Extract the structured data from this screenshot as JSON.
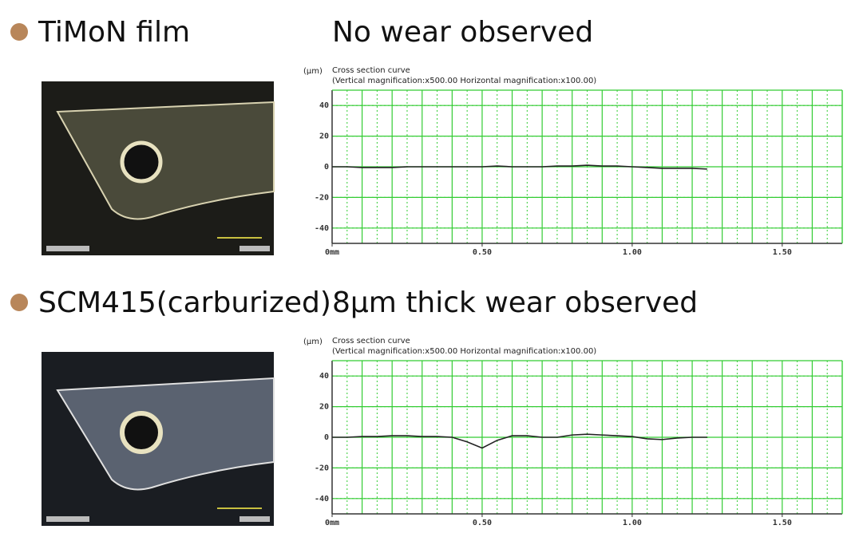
{
  "chart_data": [
    {
      "type": "line",
      "sample": "TiMoN film",
      "title": "No wear observed",
      "ylabel": "(μm)",
      "subtitle": "Cross section curve",
      "caption": "(Vertical magnification:x500.00  Horizontal magnification:x100.00)",
      "x": [
        0,
        0.05,
        0.1,
        0.15,
        0.2,
        0.25,
        0.3,
        0.35,
        0.4,
        0.45,
        0.5,
        0.55,
        0.6,
        0.65,
        0.7,
        0.75,
        0.8,
        0.85,
        0.9,
        0.95,
        1.0,
        1.05,
        1.1,
        1.15,
        1.2,
        1.25
      ],
      "series": [
        {
          "color": "#222222",
          "values": [
            0,
            0,
            -0.5,
            -0.5,
            -0.5,
            0,
            0,
            0,
            0,
            0,
            0,
            0.5,
            0,
            0,
            0,
            0.5,
            0.5,
            1,
            0.5,
            0.5,
            0,
            -0.5,
            -1,
            -1,
            -1,
            -1.5
          ]
        }
      ],
      "xlim": [
        0,
        1.7
      ],
      "xticks": [
        {
          "value": 0,
          "label": "0mm"
        },
        {
          "value": 0.5,
          "label": "0.50"
        },
        {
          "value": 1,
          "label": "1.00"
        },
        {
          "value": 1.5,
          "label": "1.50"
        }
      ],
      "ylim": [
        -50,
        50
      ],
      "yticks": [
        -40,
        -20,
        0,
        20,
        40
      ],
      "grid": true,
      "grid_color": "#33cc33"
    },
    {
      "type": "line",
      "sample": "SCM415(carburized)",
      "title": "8μm thick wear observed",
      "ylabel": "(μm)",
      "subtitle": "Cross section curve",
      "caption": "(Vertical magnification:x500.00  Horizontal magnification:x100.00)",
      "x": [
        0,
        0.05,
        0.1,
        0.15,
        0.2,
        0.25,
        0.3,
        0.35,
        0.4,
        0.45,
        0.5,
        0.55,
        0.6,
        0.65,
        0.7,
        0.75,
        0.8,
        0.85,
        0.9,
        0.95,
        1.0,
        1.05,
        1.1,
        1.15,
        1.2,
        1.25
      ],
      "series": [
        {
          "color": "#222222",
          "values": [
            0,
            0,
            0.5,
            0.5,
            1,
            1,
            0.5,
            0.5,
            0,
            -3,
            -7,
            -2,
            1,
            1,
            0,
            0,
            1.5,
            2,
            1.5,
            1,
            0.5,
            -1,
            -1.5,
            -0.5,
            0,
            0
          ]
        }
      ],
      "xlim": [
        0,
        1.7
      ],
      "xticks": [
        {
          "value": 0,
          "label": "0mm"
        },
        {
          "value": 0.5,
          "label": "0.50"
        },
        {
          "value": 1,
          "label": "1.00"
        },
        {
          "value": 1.5,
          "label": "1.50"
        }
      ],
      "ylim": [
        -50,
        50
      ],
      "yticks": [
        -40,
        -20,
        0,
        20,
        40
      ],
      "grid": true,
      "grid_color": "#33cc33"
    }
  ]
}
